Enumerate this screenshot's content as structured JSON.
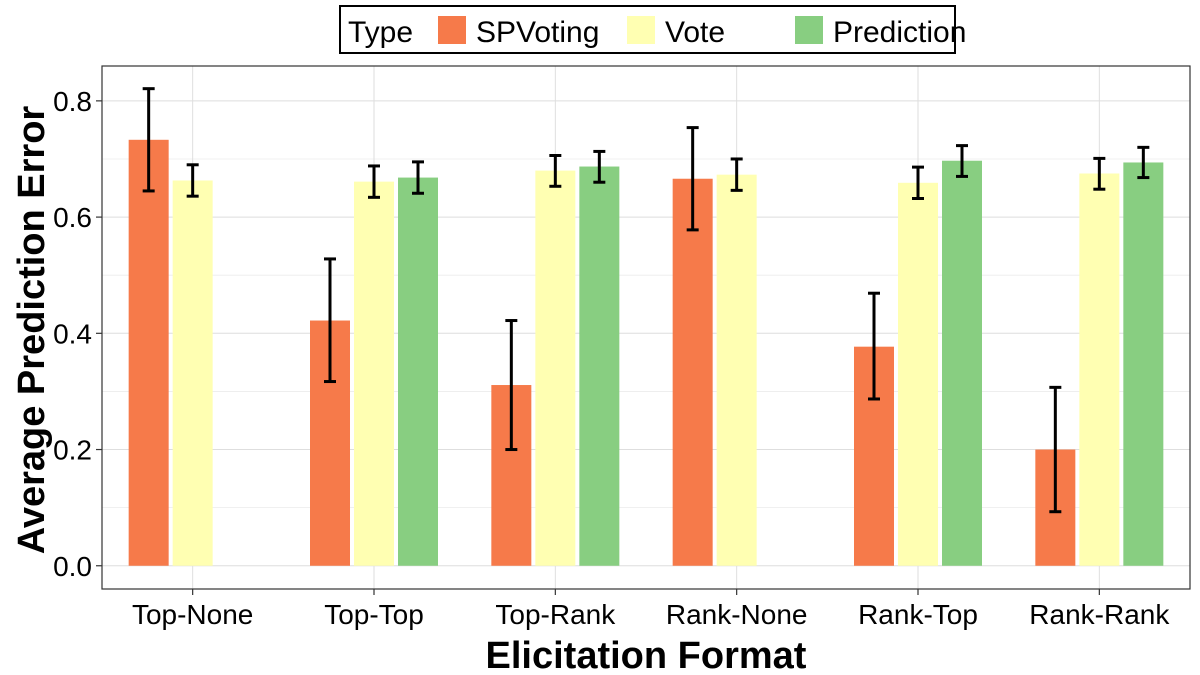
{
  "chart_data": {
    "type": "bar",
    "xlabel": "Elicitation Format",
    "ylabel": "Average Prediction Error",
    "ylim": [
      -0.04,
      0.86
    ],
    "yticks": [
      "0.0",
      "0.2",
      "0.4",
      "0.6",
      "0.8"
    ],
    "categories": [
      "Top-None",
      "Top-Top",
      "Top-Rank",
      "Rank-None",
      "Rank-Top",
      "Rank-Rank"
    ],
    "legend": {
      "title": "Type",
      "placement": "top"
    },
    "grid": true,
    "series": [
      {
        "name": "SPVoting",
        "color": "#f67a4a",
        "values": [
          0.733,
          0.422,
          0.311,
          0.666,
          0.377,
          0.2
        ],
        "error_low": [
          0.645,
          0.317,
          0.2,
          0.578,
          0.287,
          0.093
        ],
        "error_high": [
          0.821,
          0.528,
          0.422,
          0.754,
          0.469,
          0.307
        ]
      },
      {
        "name": "Vote",
        "color": "#ffffb2",
        "values": [
          0.663,
          0.661,
          0.68,
          0.673,
          0.659,
          0.675
        ],
        "error_low": [
          0.636,
          0.634,
          0.653,
          0.646,
          0.632,
          0.648
        ],
        "error_high": [
          0.69,
          0.688,
          0.706,
          0.7,
          0.686,
          0.701
        ]
      },
      {
        "name": "Prediction",
        "color": "#88ce81",
        "values": [
          null,
          0.668,
          0.687,
          null,
          0.697,
          0.694
        ],
        "error_low": [
          null,
          0.641,
          0.66,
          null,
          0.67,
          0.668
        ],
        "error_high": [
          null,
          0.695,
          0.713,
          null,
          0.723,
          0.72
        ]
      }
    ]
  }
}
